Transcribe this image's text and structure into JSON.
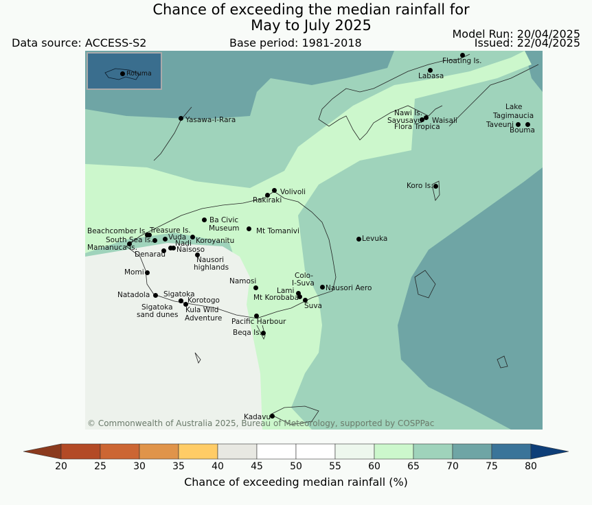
{
  "title_line1": "Chance of exceeding the median rainfall for",
  "title_line2": "May to July 2025",
  "data_source": "Data source: ACCESS-S2",
  "base_period": "Base period: 1981-2018",
  "model_run": "Model Run: 20/04/2025",
  "issued": "Issued: 22/04/2025",
  "copyright": "© Commonwealth of Australia 2025, Bureau of Meteorology, supported by COSPPac",
  "inset_label": "Rotuma",
  "colorbar": {
    "label": "Chance of exceeding median rainfall (%)",
    "ticks": [
      "20",
      "25",
      "30",
      "35",
      "40",
      "45",
      "50",
      "55",
      "60",
      "65",
      "70",
      "75",
      "80"
    ],
    "colors": [
      "#8b3a1e",
      "#b34a26",
      "#cc6633",
      "#e0944a",
      "#ffcc66",
      "#e8e8e2",
      "#ffffff",
      "#ffffff",
      "#edf7ed",
      "#ccf7cc",
      "#9fd3bb",
      "#6fa5a5",
      "#3a7499",
      "#0e3e78"
    ]
  },
  "places": [
    {
      "name": "Floating Is."
    },
    {
      "name": "Labasa"
    },
    {
      "name": "Yasawa-I-Rara"
    },
    {
      "name": "Nawi Is."
    },
    {
      "name": "Savusavu"
    },
    {
      "name": "Waisali"
    },
    {
      "name": "Flora Tropica"
    },
    {
      "name": "Lake"
    },
    {
      "name": "Tagimaucia"
    },
    {
      "name": "Taveuni"
    },
    {
      "name": "Bouma"
    },
    {
      "name": "Volivoli"
    },
    {
      "name": "Rakiraki"
    },
    {
      "name": "Koro Is."
    },
    {
      "name": "Beachcomber Is."
    },
    {
      "name": "Treasure Is."
    },
    {
      "name": "South Sea Is."
    },
    {
      "name": "Vuda"
    },
    {
      "name": "Mamanuca Is."
    },
    {
      "name": "Nadi"
    },
    {
      "name": "Naisoso"
    },
    {
      "name": "Koroyanitu"
    },
    {
      "name": "Ba Civic"
    },
    {
      "name": "Museum"
    },
    {
      "name": "Mt Tomanivi"
    },
    {
      "name": "Denarau"
    },
    {
      "name": "Nausori"
    },
    {
      "name": "highlands"
    },
    {
      "name": "Levuka"
    },
    {
      "name": "Momi"
    },
    {
      "name": "Namosi"
    },
    {
      "name": "Colo-"
    },
    {
      "name": "I-Suva"
    },
    {
      "name": "Nausori Aero"
    },
    {
      "name": "Natadola"
    },
    {
      "name": "Sigatoka"
    },
    {
      "name": "Korotogo"
    },
    {
      "name": "Lami"
    },
    {
      "name": "Mt Korobaba"
    },
    {
      "name": "Suva"
    },
    {
      "name": "Sigatoka"
    },
    {
      "name": "sand dunes"
    },
    {
      "name": "Kula Wild"
    },
    {
      "name": "Adventure"
    },
    {
      "name": "Pacific Harbour"
    },
    {
      "name": "Beqa Is."
    },
    {
      "name": "Kadavu"
    }
  ]
}
